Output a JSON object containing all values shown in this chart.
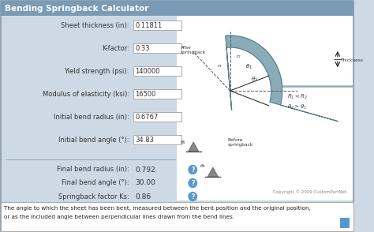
{
  "title": "Bending Springback Calculator",
  "title_bg": "#7a9ab5",
  "title_color": "white",
  "bg_color": "#cddae6",
  "input_fields": [
    {
      "label": "Sheet thickness (in):",
      "value": "0.11811"
    },
    {
      "label": "K-factor:",
      "value": "0.33"
    },
    {
      "label": "Yield strength (psi):",
      "value": "140000"
    },
    {
      "label": "Modulus of elasticity (ksi):",
      "value": "16500"
    },
    {
      "label": "Initial bend radius (in):",
      "value": "0.6767"
    },
    {
      "label": "Initial bend angle (°):",
      "value": "34.83"
    }
  ],
  "output_fields": [
    {
      "label": "Final bend radius (in):",
      "value": "0.792"
    },
    {
      "label": "Final bend angle (°):",
      "value": "30.00"
    },
    {
      "label": "Springback factor Ks:",
      "value": "0.86"
    }
  ],
  "footer_text1": "The angle to which the sheet has been bent, measured between the bent position and the original position,",
  "footer_text2": "or as the included angle between perpendicular lines drawn from the bend lines.",
  "box_color": "white",
  "box_edge": "#aaaaaa",
  "footer_bg": "white",
  "outer_border": "#8899aa",
  "divider_color": "#9ab0c0",
  "copyright": "Copyright © 2009 CustomPartNet",
  "icon_color": "#5599cc",
  "diagram_bg": "white",
  "after_color": "#b8c8d0",
  "after_edge": "#8aacb8",
  "before_color": "#8aacb8",
  "before_edge": "#5a8090",
  "after_dark": "#7a9aaa"
}
